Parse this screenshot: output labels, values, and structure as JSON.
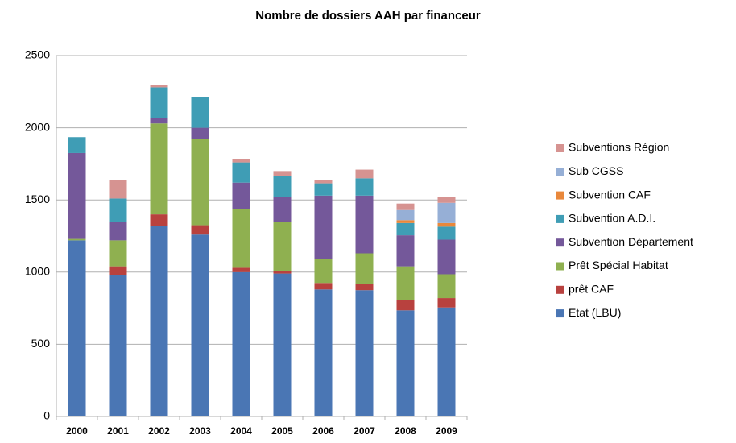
{
  "chart_data": {
    "type": "stacked_bar",
    "title": "Nombre de dossiers AAH par financeur",
    "categories": [
      "2000",
      "2001",
      "2002",
      "2003",
      "2004",
      "2005",
      "2006",
      "2007",
      "2008",
      "2009"
    ],
    "series": [
      {
        "name": "Etat (LBU)",
        "color": "#4a76b4",
        "values": [
          1220,
          980,
          1320,
          1260,
          1000,
          990,
          880,
          875,
          735,
          755
        ]
      },
      {
        "name": "prêt CAF",
        "color": "#b8413e",
        "values": [
          0,
          60,
          80,
          65,
          30,
          20,
          45,
          45,
          70,
          65
        ]
      },
      {
        "name": "Prêt Spécial Habitat",
        "color": "#8fb050",
        "values": [
          10,
          180,
          630,
          595,
          405,
          335,
          165,
          210,
          235,
          165
        ]
      },
      {
        "name": "Subvention Département",
        "color": "#74589a",
        "values": [
          595,
          130,
          40,
          80,
          185,
          175,
          440,
          400,
          215,
          240
        ]
      },
      {
        "name": "Subvention A.D.I.",
        "color": "#3f9db5",
        "values": [
          110,
          160,
          210,
          215,
          140,
          145,
          85,
          120,
          85,
          90
        ]
      },
      {
        "name": "Subvention CAF",
        "color": "#e9883b",
        "values": [
          0,
          0,
          0,
          0,
          0,
          0,
          0,
          0,
          20,
          25
        ]
      },
      {
        "name": "Sub CGSS",
        "color": "#96afd6",
        "values": [
          0,
          0,
          0,
          0,
          0,
          0,
          0,
          0,
          70,
          140
        ]
      },
      {
        "name": "Subventions Région",
        "color": "#d69391",
        "values": [
          0,
          130,
          15,
          0,
          25,
          35,
          25,
          60,
          45,
          40
        ]
      }
    ],
    "ylim": [
      0,
      2500
    ],
    "yticks": [
      0,
      500,
      1000,
      1500,
      2000,
      2500
    ],
    "grid": true
  }
}
